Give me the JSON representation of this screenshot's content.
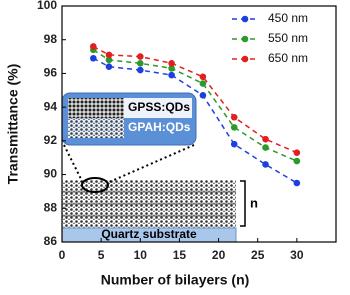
{
  "chart_data": {
    "type": "line",
    "x_label": "Number of bilayers (n)",
    "y_label": "Transmittance (%)",
    "x": [
      4,
      6,
      10,
      14,
      18,
      22,
      26,
      30
    ],
    "series": [
      {
        "name": "450 nm",
        "color": "#1d3fe0",
        "values": [
          96.9,
          96.4,
          96.2,
          95.9,
          94.7,
          91.8,
          90.6,
          89.5
        ]
      },
      {
        "name": "550 nm",
        "color": "#2a9a2a",
        "values": [
          97.4,
          96.8,
          96.6,
          96.3,
          95.4,
          92.8,
          91.6,
          90.8
        ]
      },
      {
        "name": "650 nm",
        "color": "#e02020",
        "values": [
          97.6,
          97.1,
          97.0,
          96.6,
          95.8,
          93.4,
          92.1,
          91.3
        ]
      }
    ],
    "xlim": [
      0,
      35
    ],
    "xticks": [
      0,
      5,
      10,
      15,
      20,
      25,
      30
    ],
    "ylim": [
      86,
      100
    ],
    "yticks": [
      86,
      88,
      90,
      92,
      94,
      96,
      98,
      100
    ],
    "legend": "upper right",
    "grid": false,
    "annotations": [
      "GPSS:QDs",
      "GPAH:QDs",
      "Quartz substrate",
      "n"
    ]
  }
}
